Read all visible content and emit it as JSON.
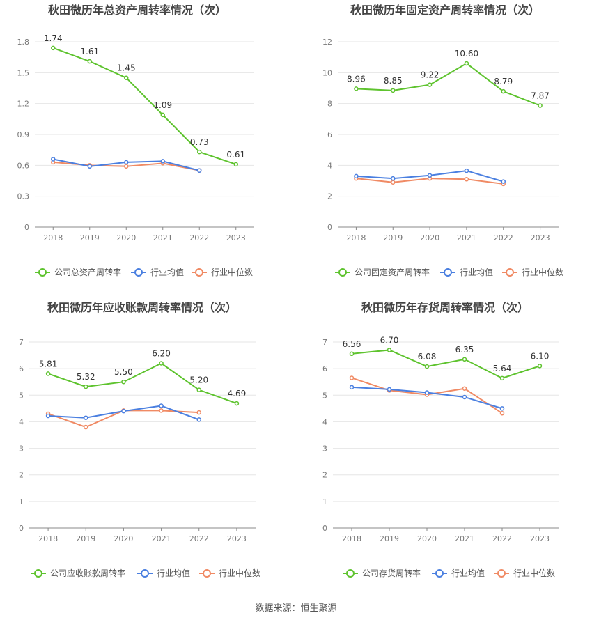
{
  "source_text": "数据来源：恒生聚源",
  "colors": {
    "company": "#5ec32e",
    "avg": "#4a7fe0",
    "median": "#f08a64",
    "grid": "#e6e6e6",
    "axis": "#888888",
    "tick": "#777777",
    "label": "#333333",
    "title": "#444444"
  },
  "chart_data": [
    {
      "type": "line",
      "title": "秋田微历年总资产周转率情况（次）",
      "x": [
        "2018",
        "2019",
        "2020",
        "2021",
        "2022",
        "2023"
      ],
      "ylim": [
        0,
        1.8
      ],
      "yticks": [
        "0",
        "0.3",
        "0.6",
        "0.9",
        "1.2",
        "1.5",
        "1.8"
      ],
      "grid": true,
      "legend_position": "bottom",
      "series": [
        {
          "name": "公司总资产周转率",
          "values": [
            1.74,
            1.61,
            1.45,
            1.09,
            0.73,
            0.61
          ],
          "labels": [
            "1.74",
            "1.61",
            "1.45",
            "1.09",
            "0.73",
            "0.61"
          ]
        },
        {
          "name": "行业均值",
          "values": [
            0.66,
            0.59,
            0.63,
            0.64,
            0.55,
            null
          ]
        },
        {
          "name": "行业中位数",
          "values": [
            0.63,
            0.6,
            0.59,
            0.62,
            0.55,
            null
          ]
        }
      ]
    },
    {
      "type": "line",
      "title": "秋田微历年固定资产周转率情况（次）",
      "x": [
        "2018",
        "2019",
        "2020",
        "2021",
        "2022",
        "2023"
      ],
      "ylim": [
        0,
        12
      ],
      "yticks": [
        "0",
        "2",
        "4",
        "6",
        "8",
        "10",
        "12"
      ],
      "grid": true,
      "legend_position": "bottom",
      "series": [
        {
          "name": "公司固定资产周转率",
          "values": [
            8.96,
            8.85,
            9.22,
            10.6,
            8.79,
            7.87
          ],
          "labels": [
            "8.96",
            "8.85",
            "9.22",
            "10.60",
            "8.79",
            "7.87"
          ]
        },
        {
          "name": "行业均值",
          "values": [
            3.3,
            3.15,
            3.35,
            3.65,
            2.95,
            null
          ]
        },
        {
          "name": "行业中位数",
          "values": [
            3.15,
            2.9,
            3.15,
            3.1,
            2.8,
            null
          ]
        }
      ]
    },
    {
      "type": "line",
      "title": "秋田微历年应收账款周转率情况（次）",
      "x": [
        "2018",
        "2019",
        "2020",
        "2021",
        "2022",
        "2023"
      ],
      "ylim": [
        0,
        7
      ],
      "yticks": [
        "0",
        "1",
        "2",
        "3",
        "4",
        "5",
        "6",
        "7"
      ],
      "grid": true,
      "legend_position": "bottom",
      "series": [
        {
          "name": "公司应收账款周转率",
          "values": [
            5.81,
            5.32,
            5.5,
            6.2,
            5.2,
            4.69
          ],
          "labels": [
            "5.81",
            "5.32",
            "5.50",
            "6.20",
            "5.20",
            "4.69"
          ]
        },
        {
          "name": "行业均值",
          "values": [
            4.22,
            4.15,
            4.4,
            4.6,
            4.08,
            null
          ]
        },
        {
          "name": "行业中位数",
          "values": [
            4.3,
            3.8,
            4.42,
            4.42,
            4.35,
            null
          ]
        }
      ]
    },
    {
      "type": "line",
      "title": "秋田微历年存货周转率情况（次）",
      "x": [
        "2018",
        "2019",
        "2020",
        "2021",
        "2022",
        "2023"
      ],
      "ylim": [
        0,
        7
      ],
      "yticks": [
        "0",
        "1",
        "2",
        "3",
        "4",
        "5",
        "6",
        "7"
      ],
      "grid": true,
      "legend_position": "bottom",
      "series": [
        {
          "name": "公司存货周转率",
          "values": [
            6.56,
            6.7,
            6.08,
            6.35,
            5.64,
            6.1
          ],
          "labels": [
            "6.56",
            "6.70",
            "6.08",
            "6.35",
            "5.64",
            "6.10"
          ]
        },
        {
          "name": "行业均值",
          "values": [
            5.3,
            5.22,
            5.1,
            4.93,
            4.5,
            null
          ]
        },
        {
          "name": "行业中位数",
          "values": [
            5.65,
            5.18,
            5.02,
            5.25,
            4.32,
            null
          ]
        }
      ]
    }
  ]
}
